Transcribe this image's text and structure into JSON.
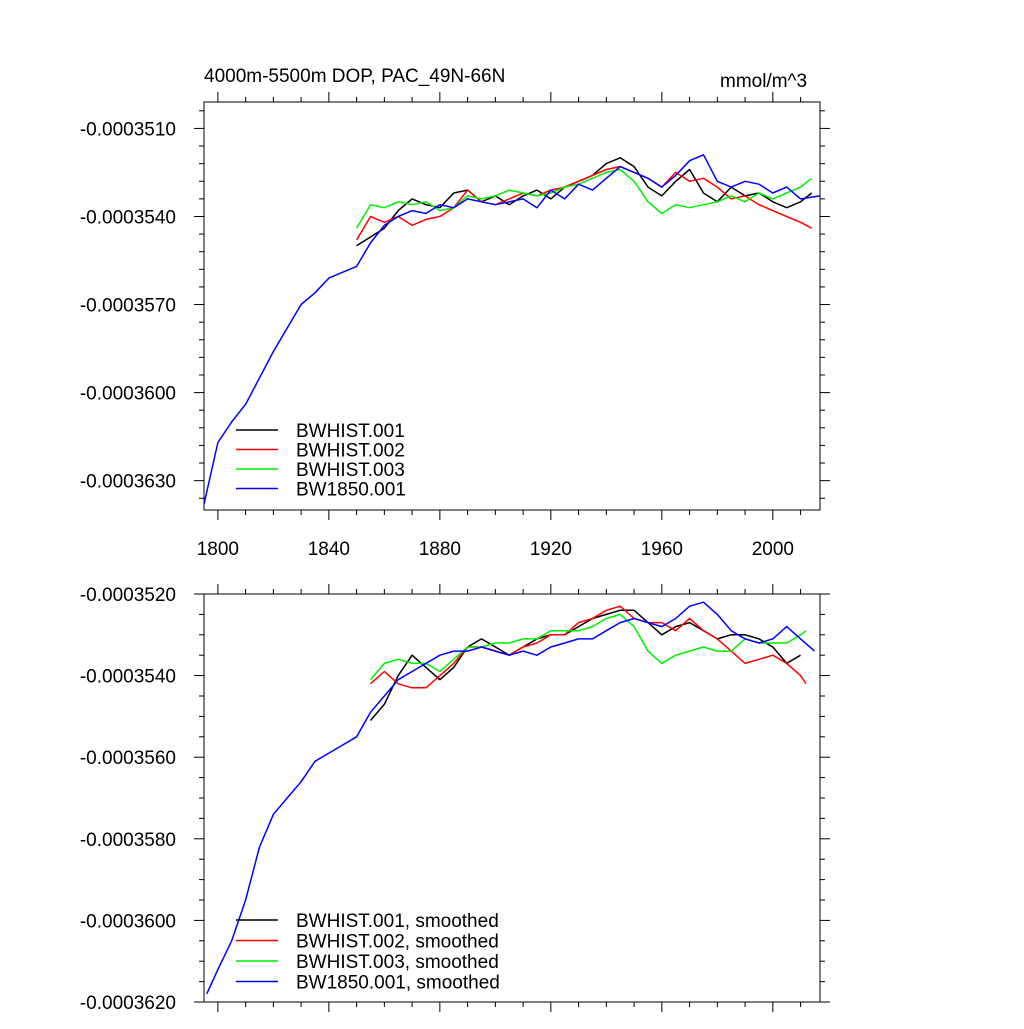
{
  "title_left": "4000m-5500m DOP, PAC_49N-66N",
  "title_right": "mmol/m^3",
  "colors": {
    "BWHIST.001": "#000000",
    "BWHIST.002": "#ff0000",
    "BWHIST.003": "#00ee00",
    "BW1850.001": "#0000ff"
  },
  "chart_data": [
    {
      "type": "line",
      "title": "",
      "xlabel": "",
      "ylabel": "",
      "xlim": [
        1795,
        2017
      ],
      "ylim": [
        -0.000364,
        -0.0003501
      ],
      "xticks": [
        1800,
        1840,
        1880,
        1920,
        1960,
        2000
      ],
      "xtick_labels": [
        "1800",
        "1840",
        "1880",
        "1920",
        "1960",
        "2000"
      ],
      "yticks": [
        -0.000363,
        -0.00036,
        -0.000357,
        -0.000354,
        -0.000351
      ],
      "ytick_labels": [
        "-0.0003630",
        "-0.0003600",
        "-0.0003570",
        "-0.0003540",
        "-0.0003510"
      ],
      "legend_position": "bottom-left",
      "series": [
        {
          "name": "BWHIST.001",
          "color": "#000000",
          "x": [
            1850,
            1855,
            1860,
            1865,
            1870,
            1875,
            1880,
            1885,
            1890,
            1895,
            1900,
            1905,
            1910,
            1915,
            1920,
            1925,
            1930,
            1935,
            1940,
            1945,
            1950,
            1955,
            1960,
            1965,
            1970,
            1975,
            1980,
            1985,
            1990,
            1995,
            2000,
            2005,
            2010,
            2014
          ],
          "y": [
            -0.000355,
            -0.0003547,
            -0.0003544,
            -0.0003538,
            -0.0003534,
            -0.0003536,
            -0.0003537,
            -0.0003532,
            -0.0003531,
            -0.0003535,
            -0.0003533,
            -0.0003536,
            -0.0003533,
            -0.0003531,
            -0.0003534,
            -0.000353,
            -0.0003528,
            -0.0003526,
            -0.0003522,
            -0.000352,
            -0.0003523,
            -0.000353,
            -0.0003533,
            -0.0003528,
            -0.0003524,
            -0.0003532,
            -0.0003535,
            -0.000353,
            -0.0003533,
            -0.0003532,
            -0.0003535,
            -0.0003537,
            -0.0003535,
            -0.0003532
          ]
        },
        {
          "name": "BWHIST.002",
          "color": "#ff0000",
          "x": [
            1850,
            1855,
            1860,
            1865,
            1870,
            1875,
            1880,
            1885,
            1890,
            1895,
            1900,
            1905,
            1910,
            1915,
            1920,
            1925,
            1930,
            1935,
            1940,
            1945,
            1950,
            1955,
            1960,
            1965,
            1970,
            1975,
            1980,
            1985,
            1990,
            1995,
            2000,
            2005,
            2010,
            2014
          ],
          "y": [
            -0.0003548,
            -0.000354,
            -0.0003542,
            -0.000354,
            -0.0003543,
            -0.0003541,
            -0.000354,
            -0.0003537,
            -0.0003531,
            -0.0003535,
            -0.0003536,
            -0.0003534,
            -0.0003532,
            -0.0003533,
            -0.0003531,
            -0.000353,
            -0.0003528,
            -0.0003526,
            -0.0003524,
            -0.0003523,
            -0.0003525,
            -0.0003527,
            -0.000353,
            -0.0003525,
            -0.0003528,
            -0.0003527,
            -0.000353,
            -0.0003534,
            -0.0003533,
            -0.0003536,
            -0.0003538,
            -0.000354,
            -0.0003542,
            -0.0003544
          ]
        },
        {
          "name": "BWHIST.003",
          "color": "#00ee00",
          "x": [
            1850,
            1855,
            1860,
            1865,
            1870,
            1875,
            1880,
            1885,
            1890,
            1895,
            1900,
            1905,
            1910,
            1915,
            1920,
            1925,
            1930,
            1935,
            1940,
            1945,
            1950,
            1955,
            1960,
            1965,
            1970,
            1975,
            1980,
            1985,
            1990,
            1995,
            2000,
            2005,
            2010,
            2014
          ],
          "y": [
            -0.0003544,
            -0.0003536,
            -0.0003537,
            -0.0003535,
            -0.0003536,
            -0.0003535,
            -0.0003538,
            -0.0003537,
            -0.0003533,
            -0.0003534,
            -0.0003533,
            -0.0003531,
            -0.0003532,
            -0.0003533,
            -0.0003532,
            -0.000353,
            -0.0003529,
            -0.0003527,
            -0.0003525,
            -0.0003524,
            -0.0003528,
            -0.0003535,
            -0.0003539,
            -0.0003536,
            -0.0003537,
            -0.0003536,
            -0.0003535,
            -0.0003533,
            -0.0003535,
            -0.0003532,
            -0.0003534,
            -0.0003532,
            -0.000353,
            -0.0003527
          ]
        },
        {
          "name": "BW1850.001",
          "color": "#0000ff",
          "x": [
            1795,
            1800,
            1805,
            1810,
            1815,
            1820,
            1825,
            1830,
            1835,
            1840,
            1845,
            1850,
            1855,
            1860,
            1865,
            1870,
            1875,
            1880,
            1885,
            1890,
            1895,
            1900,
            1905,
            1910,
            1915,
            1920,
            1925,
            1930,
            1935,
            1940,
            1945,
            1950,
            1955,
            1960,
            1965,
            1970,
            1975,
            1980,
            1985,
            1990,
            1995,
            2000,
            2005,
            2010,
            2017
          ],
          "y": [
            -0.0003638,
            -0.0003617,
            -0.000361,
            -0.0003604,
            -0.0003595,
            -0.0003586,
            -0.0003578,
            -0.000357,
            -0.0003566,
            -0.0003561,
            -0.0003559,
            -0.0003557,
            -0.0003549,
            -0.0003543,
            -0.000354,
            -0.0003538,
            -0.0003539,
            -0.0003536,
            -0.0003537,
            -0.0003534,
            -0.0003535,
            -0.0003536,
            -0.0003535,
            -0.0003534,
            -0.0003537,
            -0.0003531,
            -0.0003534,
            -0.0003529,
            -0.0003531,
            -0.0003527,
            -0.0003523,
            -0.0003525,
            -0.0003527,
            -0.000353,
            -0.0003526,
            -0.0003521,
            -0.0003519,
            -0.0003528,
            -0.000353,
            -0.0003528,
            -0.0003529,
            -0.0003532,
            -0.000353,
            -0.0003534,
            -0.0003533
          ]
        }
      ]
    },
    {
      "type": "line",
      "title": "",
      "xlabel": "",
      "ylabel": "",
      "xlim": [
        1795,
        2017
      ],
      "ylim": [
        -0.000362,
        -0.000352
      ],
      "xticks": [
        1800,
        1840,
        1880,
        1920,
        1960,
        2000
      ],
      "yticks": [
        -0.000362,
        -0.00036,
        -0.000358,
        -0.000356,
        -0.000354,
        -0.000352
      ],
      "ytick_labels": [
        "-0.0003620",
        "-0.0003600",
        "-0.0003580",
        "-0.0003560",
        "-0.0003540",
        "-0.0003520"
      ],
      "legend_position": "bottom-left",
      "series": [
        {
          "name": "BWHIST.001, smoothed",
          "color": "#000000",
          "x": [
            1855,
            1860,
            1865,
            1870,
            1875,
            1880,
            1885,
            1890,
            1895,
            1900,
            1905,
            1910,
            1915,
            1920,
            1925,
            1930,
            1935,
            1940,
            1945,
            1950,
            1955,
            1960,
            1965,
            1970,
            1975,
            1980,
            1985,
            1990,
            1995,
            2000,
            2005,
            2010
          ],
          "y": [
            -0.0003551,
            -0.0003547,
            -0.000354,
            -0.0003535,
            -0.0003538,
            -0.0003541,
            -0.0003538,
            -0.0003533,
            -0.0003531,
            -0.0003533,
            -0.0003535,
            -0.0003533,
            -0.0003531,
            -0.000353,
            -0.000353,
            -0.0003528,
            -0.0003526,
            -0.0003525,
            -0.0003524,
            -0.0003524,
            -0.0003527,
            -0.000353,
            -0.0003528,
            -0.0003527,
            -0.0003529,
            -0.0003531,
            -0.000353,
            -0.000353,
            -0.0003531,
            -0.0003533,
            -0.0003537,
            -0.0003535
          ]
        },
        {
          "name": "BWHIST.002, smoothed",
          "color": "#ff0000",
          "x": [
            1855,
            1860,
            1865,
            1870,
            1875,
            1880,
            1885,
            1890,
            1895,
            1900,
            1905,
            1910,
            1915,
            1920,
            1925,
            1930,
            1935,
            1940,
            1945,
            1950,
            1955,
            1960,
            1965,
            1970,
            1975,
            1980,
            1985,
            1990,
            1995,
            2000,
            2005,
            2010,
            2012
          ],
          "y": [
            -0.0003542,
            -0.0003539,
            -0.0003542,
            -0.0003543,
            -0.0003543,
            -0.000354,
            -0.0003537,
            -0.0003533,
            -0.0003533,
            -0.0003534,
            -0.0003535,
            -0.0003533,
            -0.0003532,
            -0.000353,
            -0.000353,
            -0.0003527,
            -0.0003526,
            -0.0003524,
            -0.0003523,
            -0.0003526,
            -0.0003527,
            -0.0003527,
            -0.0003529,
            -0.0003526,
            -0.0003529,
            -0.0003531,
            -0.0003534,
            -0.0003537,
            -0.0003536,
            -0.0003535,
            -0.0003537,
            -0.000354,
            -0.0003542
          ]
        },
        {
          "name": "BWHIST.003, smoothed",
          "color": "#00ee00",
          "x": [
            1855,
            1860,
            1865,
            1870,
            1875,
            1880,
            1885,
            1890,
            1895,
            1900,
            1905,
            1910,
            1915,
            1920,
            1925,
            1930,
            1935,
            1940,
            1945,
            1950,
            1955,
            1960,
            1965,
            1970,
            1975,
            1980,
            1985,
            1990,
            1995,
            2000,
            2005,
            2010,
            2012
          ],
          "y": [
            -0.0003541,
            -0.0003537,
            -0.0003536,
            -0.0003537,
            -0.0003537,
            -0.0003539,
            -0.0003536,
            -0.0003533,
            -0.0003533,
            -0.0003532,
            -0.0003532,
            -0.0003531,
            -0.0003531,
            -0.0003529,
            -0.0003529,
            -0.0003529,
            -0.0003528,
            -0.0003526,
            -0.0003525,
            -0.0003528,
            -0.0003534,
            -0.0003537,
            -0.0003535,
            -0.0003534,
            -0.0003533,
            -0.0003534,
            -0.0003534,
            -0.0003531,
            -0.0003532,
            -0.0003532,
            -0.0003532,
            -0.000353,
            -0.0003529
          ]
        },
        {
          "name": "BW1850.001, smoothed",
          "color": "#0000ff",
          "x": [
            1796,
            1800,
            1805,
            1810,
            1815,
            1820,
            1825,
            1830,
            1835,
            1840,
            1845,
            1850,
            1855,
            1860,
            1865,
            1870,
            1875,
            1880,
            1885,
            1890,
            1895,
            1900,
            1905,
            1910,
            1915,
            1920,
            1925,
            1930,
            1935,
            1940,
            1945,
            1950,
            1955,
            1960,
            1965,
            1970,
            1975,
            1980,
            1985,
            1990,
            1995,
            2000,
            2005,
            2010,
            2015
          ],
          "y": [
            -0.0003618,
            -0.0003612,
            -0.0003605,
            -0.0003595,
            -0.0003582,
            -0.0003574,
            -0.000357,
            -0.0003566,
            -0.0003561,
            -0.0003559,
            -0.0003557,
            -0.0003555,
            -0.0003549,
            -0.0003545,
            -0.0003541,
            -0.0003539,
            -0.0003537,
            -0.0003535,
            -0.0003534,
            -0.0003534,
            -0.0003533,
            -0.0003534,
            -0.0003535,
            -0.0003534,
            -0.0003535,
            -0.0003533,
            -0.0003532,
            -0.0003531,
            -0.0003531,
            -0.0003529,
            -0.0003527,
            -0.0003526,
            -0.0003527,
            -0.0003528,
            -0.0003526,
            -0.0003523,
            -0.0003522,
            -0.0003525,
            -0.0003529,
            -0.0003531,
            -0.0003532,
            -0.0003531,
            -0.0003528,
            -0.0003531,
            -0.0003534
          ]
        }
      ]
    }
  ]
}
